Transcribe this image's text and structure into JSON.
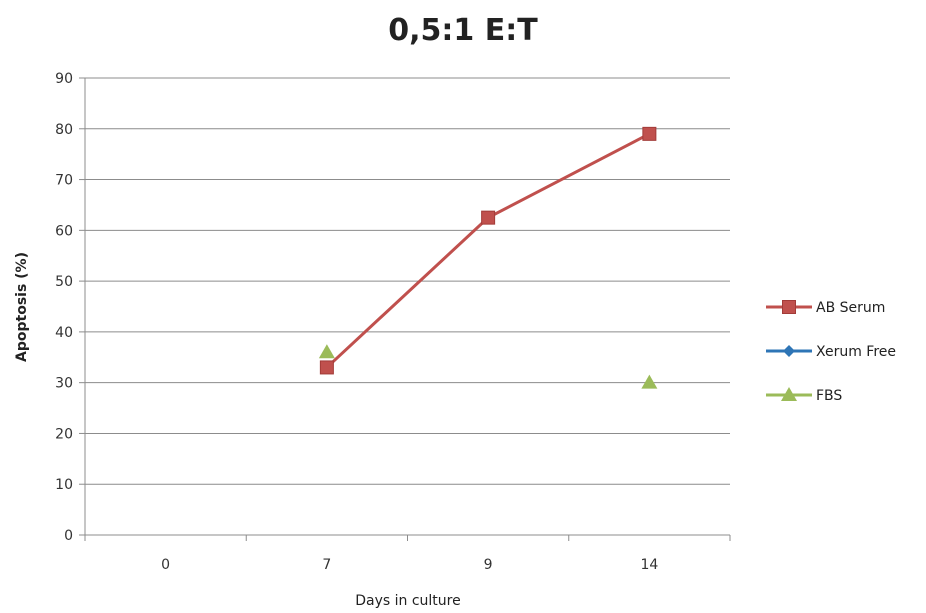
{
  "chart_data": {
    "type": "line",
    "title": "0,5:1 E:T",
    "xlabel": "Days in culture",
    "ylabel": "Apoptosis (%)",
    "categories": [
      "0",
      "7",
      "9",
      "14"
    ],
    "ylim": [
      0,
      90
    ],
    "y_ticks": [
      "0",
      "10",
      "20",
      "30",
      "40",
      "50",
      "60",
      "70",
      "80",
      "90"
    ],
    "grid": true,
    "legend_position": "right",
    "series": [
      {
        "name": "AB Serum",
        "color": "#c0504d",
        "marker": "square",
        "values": [
          null,
          33,
          62.5,
          79
        ]
      },
      {
        "name": "Xerum Free",
        "color": "#2e75b6",
        "marker": "diamond",
        "values": [
          null,
          null,
          null,
          null
        ]
      },
      {
        "name": "FBS",
        "color": "#9bbb59",
        "marker": "triangle",
        "values": [
          null,
          36,
          null,
          30
        ]
      }
    ]
  }
}
